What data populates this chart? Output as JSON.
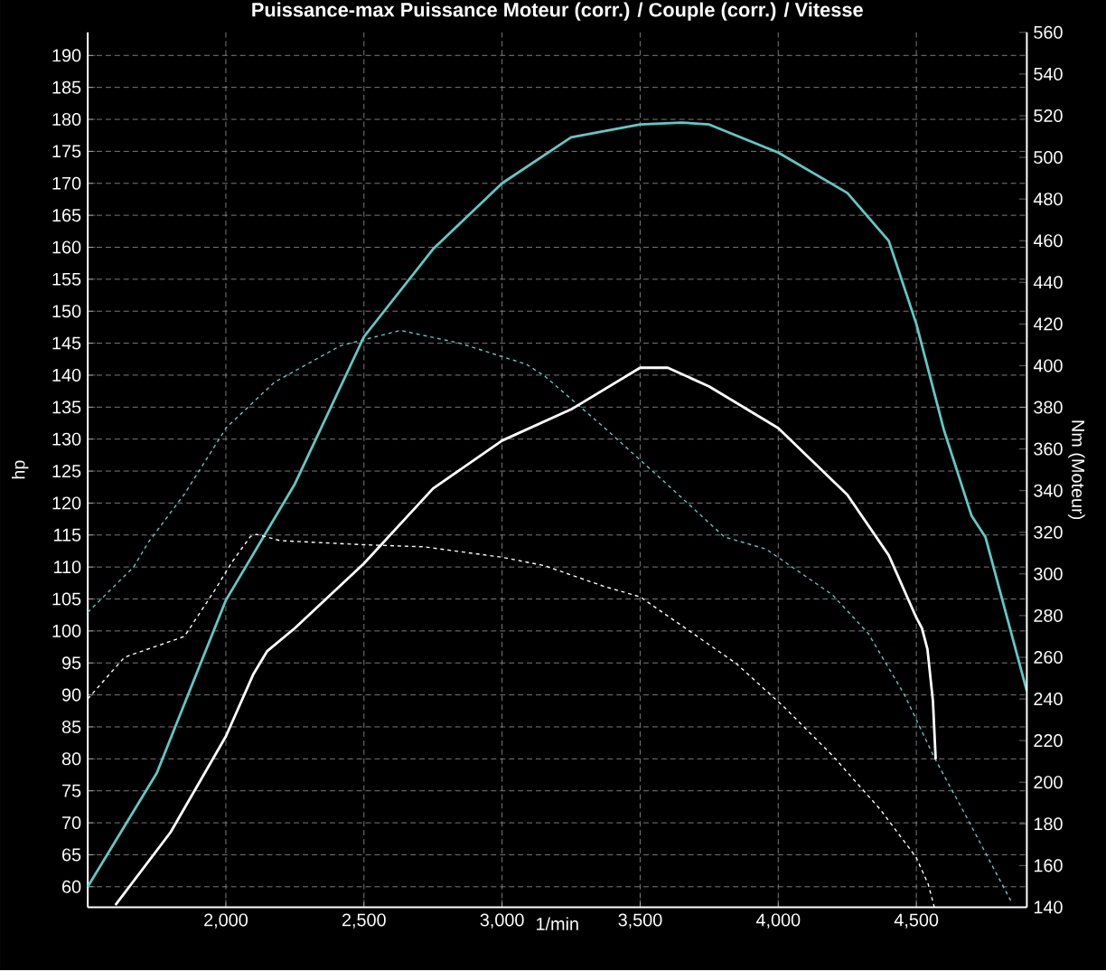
{
  "chart_data": {
    "type": "line",
    "title": "Puissance-max Puissance Moteur (corr.) / Couple (corr.) / Vitesse",
    "xlabel": "1/min",
    "ylabel": "hp",
    "y2label": "Nm (Moteur)",
    "xlim": [
      1500,
      4900
    ],
    "ylim": [
      56.8,
      193.6
    ],
    "y2lim": [
      140,
      560
    ],
    "xticks": [
      {
        "value": 2000,
        "label": "2,000"
      },
      {
        "value": 2500,
        "label": "2,500"
      },
      {
        "value": 3000,
        "label": "3,000"
      },
      {
        "value": 3500,
        "label": "3,500"
      },
      {
        "value": 4000,
        "label": "4,000"
      },
      {
        "value": 4500,
        "label": "4,500"
      }
    ],
    "yticks": [
      60,
      65,
      70,
      75,
      80,
      85,
      90,
      95,
      100,
      105,
      110,
      115,
      120,
      125,
      130,
      135,
      140,
      145,
      150,
      155,
      160,
      165,
      170,
      175,
      180,
      185,
      190
    ],
    "y2ticks": [
      140,
      160,
      180,
      200,
      220,
      240,
      260,
      280,
      300,
      320,
      340,
      360,
      380,
      400,
      420,
      440,
      460,
      480,
      500,
      520,
      540,
      560
    ],
    "grid": true,
    "series": [
      {
        "color": "#5fc9c5",
        "axis": "y",
        "line_style": "solid",
        "x": [
          1500,
          1750,
          2000,
          2250,
          2500,
          2750,
          3000,
          3250,
          3500,
          3650,
          3750,
          4000,
          4250,
          4400,
          4500,
          4600,
          4700,
          4750,
          4900
        ],
        "values": [
          60,
          77.8,
          104.8,
          123,
          146,
          159.7,
          170,
          177.2,
          179.2,
          179.5,
          179.2,
          174.8,
          168.5,
          161,
          148,
          131.4,
          118,
          114.7,
          90.6
        ]
      },
      {
        "color": "#ffffff",
        "axis": "y2",
        "line_style": "solid",
        "x": [
          1600,
          1800,
          2000,
          2100,
          2150,
          2250,
          2500,
          2750,
          3000,
          3250,
          3500,
          3600,
          3750,
          4000,
          4250,
          4400,
          4500,
          4520,
          4540,
          4560,
          4570
        ],
        "values": [
          141,
          176,
          222,
          252,
          263,
          274,
          305,
          341,
          364,
          379,
          399,
          399,
          390,
          370,
          338,
          309,
          279,
          274,
          264,
          239,
          211
        ]
      },
      {
        "color": "#5fc9c5",
        "axis": "y",
        "line_style": "dashed",
        "x": [
          1500,
          1666,
          1720,
          1850,
          2002,
          2176,
          2415,
          2632,
          2847,
          3088,
          3153,
          3370,
          3588,
          3805,
          3956,
          4195,
          4326,
          4456,
          4565,
          4673,
          4847
        ],
        "values": [
          102.9,
          110,
          113.9,
          121.4,
          131.8,
          138.9,
          144.6,
          147,
          145,
          141.7,
          139.9,
          131.8,
          123.3,
          114.7,
          112.8,
          105.7,
          99.6,
          90.1,
          80.2,
          71.6,
          57.4
        ]
      },
      {
        "color": "#ffffff",
        "axis": "y2",
        "line_style": "dashed",
        "x": [
          1500,
          1633,
          1850,
          1959,
          2024,
          2089,
          2111,
          2197,
          2502,
          2719,
          3001,
          3153,
          3370,
          3500,
          3696,
          3848,
          4022,
          4195,
          4369,
          4499,
          4543,
          4565
        ],
        "values": [
          240,
          260,
          270,
          292,
          306,
          318,
          319,
          316,
          314,
          313,
          308,
          304,
          294,
          289,
          271,
          257,
          236,
          213,
          187,
          164,
          151,
          140
        ]
      }
    ]
  }
}
